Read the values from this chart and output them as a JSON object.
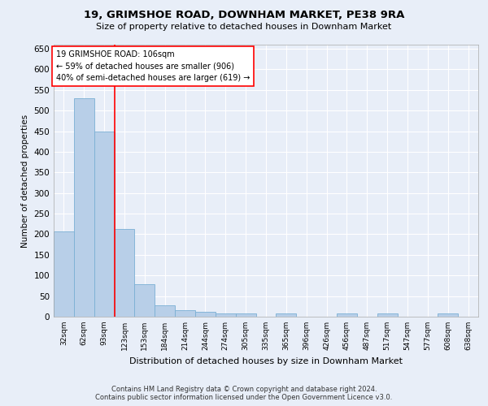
{
  "title": "19, GRIMSHOE ROAD, DOWNHAM MARKET, PE38 9RA",
  "subtitle": "Size of property relative to detached houses in Downham Market",
  "xlabel": "Distribution of detached houses by size in Downham Market",
  "ylabel": "Number of detached properties",
  "categories": [
    "32sqm",
    "62sqm",
    "93sqm",
    "123sqm",
    "153sqm",
    "184sqm",
    "214sqm",
    "244sqm",
    "274sqm",
    "305sqm",
    "335sqm",
    "365sqm",
    "396sqm",
    "426sqm",
    "456sqm",
    "487sqm",
    "517sqm",
    "547sqm",
    "577sqm",
    "608sqm",
    "638sqm"
  ],
  "values": [
    207,
    530,
    450,
    212,
    78,
    27,
    15,
    12,
    8,
    8,
    0,
    7,
    0,
    0,
    7,
    0,
    7,
    0,
    0,
    7,
    0
  ],
  "bar_color": "#b8cfe8",
  "bar_edge_color": "#7aafd4",
  "ylim": [
    0,
    660
  ],
  "yticks": [
    0,
    50,
    100,
    150,
    200,
    250,
    300,
    350,
    400,
    450,
    500,
    550,
    600,
    650
  ],
  "red_line_x": 2.5,
  "annotation_text_line1": "19 GRIMSHOE ROAD: 106sqm",
  "annotation_text_line2": "← 59% of detached houses are smaller (906)",
  "annotation_text_line3": "40% of semi-detached houses are larger (619) →",
  "footer_line1": "Contains HM Land Registry data © Crown copyright and database right 2024.",
  "footer_line2": "Contains public sector information licensed under the Open Government Licence v3.0.",
  "background_color": "#e8eef8",
  "plot_bg_color": "#e8eef8",
  "grid_color": "#ffffff"
}
